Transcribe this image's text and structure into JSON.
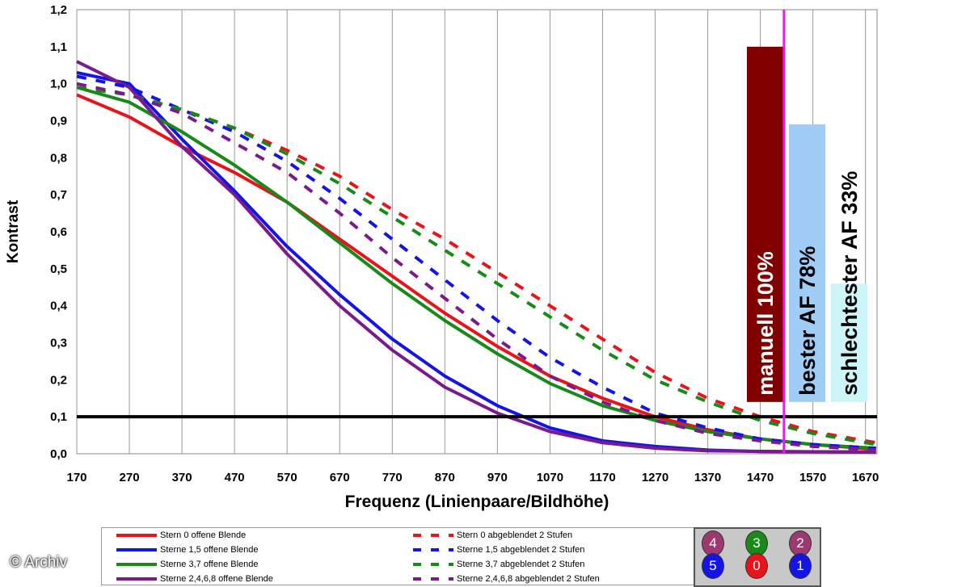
{
  "chart_data": {
    "type": "line",
    "title": "",
    "xlabel": "Frequenz (Linienpaare/Bildhöhe)",
    "ylabel": "Kontrast",
    "xlim": [
      170,
      1692
    ],
    "ylim": [
      0,
      1.2
    ],
    "xticks": [
      170,
      270,
      370,
      470,
      570,
      670,
      770,
      870,
      970,
      1070,
      1170,
      1270,
      1370,
      1470,
      1570,
      1670
    ],
    "yticks": [
      "0,0",
      "0,1",
      "0,2",
      "0,3",
      "0,4",
      "0,5",
      "0,6",
      "0,7",
      "0,8",
      "0,9",
      "1,0",
      "1,1",
      "1,2"
    ],
    "threshold": 0.1,
    "marker_x": 1515,
    "series": [
      {
        "name": "Stern 0 offene Blende",
        "color": "#e8141a",
        "dash": false,
        "x": [
          170,
          270,
          370,
          470,
          570,
          670,
          770,
          870,
          970,
          1070,
          1170,
          1270,
          1370,
          1470,
          1570,
          1690
        ],
        "y": [
          0.97,
          0.91,
          0.83,
          0.76,
          0.68,
          0.58,
          0.48,
          0.38,
          0.29,
          0.21,
          0.15,
          0.1,
          0.065,
          0.04,
          0.025,
          0.012
        ]
      },
      {
        "name": "Sterne 1,5 offene Blende",
        "color": "#1414e6",
        "dash": false,
        "x": [
          170,
          270,
          370,
          470,
          570,
          670,
          770,
          870,
          970,
          1070,
          1170,
          1270,
          1370,
          1470,
          1690
        ],
        "y": [
          1.03,
          1.0,
          0.85,
          0.71,
          0.56,
          0.43,
          0.31,
          0.21,
          0.13,
          0.07,
          0.035,
          0.02,
          0.01,
          0.006,
          0.005
        ]
      },
      {
        "name": "Sterne 3,7 offene Blende",
        "color": "#178a1a",
        "dash": false,
        "x": [
          170,
          270,
          370,
          470,
          570,
          670,
          770,
          870,
          970,
          1070,
          1170,
          1270,
          1370,
          1470,
          1570,
          1690
        ],
        "y": [
          0.99,
          0.95,
          0.87,
          0.78,
          0.68,
          0.57,
          0.46,
          0.36,
          0.27,
          0.19,
          0.13,
          0.09,
          0.06,
          0.04,
          0.025,
          0.015
        ]
      },
      {
        "name": "Sterne 2,4,6,8 offene Blende",
        "color": "#7a1a8c",
        "dash": false,
        "x": [
          170,
          270,
          370,
          470,
          570,
          670,
          770,
          870,
          970,
          1070,
          1170,
          1270,
          1370,
          1690
        ],
        "y": [
          1.06,
          0.99,
          0.83,
          0.7,
          0.54,
          0.4,
          0.28,
          0.18,
          0.11,
          0.06,
          0.03,
          0.015,
          0.008,
          0.004
        ]
      },
      {
        "name": "Stern 0 abgeblendet 2 Stufen",
        "color": "#e8141a",
        "dash": true,
        "x": [
          170,
          270,
          370,
          470,
          570,
          670,
          770,
          870,
          970,
          1070,
          1170,
          1270,
          1370,
          1470,
          1570,
          1690
        ],
        "y": [
          0.99,
          0.97,
          0.93,
          0.88,
          0.82,
          0.75,
          0.66,
          0.58,
          0.49,
          0.4,
          0.31,
          0.22,
          0.15,
          0.1,
          0.06,
          0.03
        ]
      },
      {
        "name": "Sterne 1,5 abgeblendet 2 Stufen",
        "color": "#1414e6",
        "dash": true,
        "x": [
          170,
          270,
          370,
          470,
          570,
          670,
          770,
          870,
          970,
          1070,
          1170,
          1270,
          1370,
          1470,
          1570,
          1690
        ],
        "y": [
          1.02,
          0.99,
          0.93,
          0.87,
          0.79,
          0.69,
          0.58,
          0.47,
          0.36,
          0.26,
          0.18,
          0.11,
          0.07,
          0.04,
          0.025,
          0.015
        ]
      },
      {
        "name": "Sterne 3,7 abgeblendet 2 Stufen",
        "color": "#178a1a",
        "dash": true,
        "x": [
          170,
          270,
          370,
          470,
          570,
          670,
          770,
          870,
          970,
          1070,
          1170,
          1270,
          1370,
          1470,
          1570,
          1690
        ],
        "y": [
          0.99,
          0.97,
          0.93,
          0.88,
          0.81,
          0.73,
          0.64,
          0.55,
          0.46,
          0.37,
          0.28,
          0.2,
          0.14,
          0.09,
          0.055,
          0.025
        ]
      },
      {
        "name": "Sterne 2,4,6,8 abgeblendet 2 Stufen",
        "color": "#7a1a8c",
        "dash": true,
        "x": [
          170,
          270,
          370,
          470,
          570,
          670,
          770,
          870,
          970,
          1070,
          1170,
          1270,
          1370,
          1470,
          1570,
          1690
        ],
        "y": [
          1.0,
          0.97,
          0.92,
          0.84,
          0.76,
          0.65,
          0.53,
          0.42,
          0.31,
          0.21,
          0.14,
          0.09,
          0.055,
          0.035,
          0.02,
          0.01
        ]
      }
    ],
    "bars": [
      {
        "label": "manuell 100%",
        "color": "#800000",
        "text_color": "#ffffff",
        "top": 1.1,
        "bottom": 0.14
      },
      {
        "label": "bester AF 78%",
        "color": "#9fcdf5",
        "text_color": "#000000",
        "top": 0.89,
        "bottom": 0.14
      },
      {
        "label": "schlechtester AF 33%",
        "color": "#ccf5f8",
        "text_color": "#000000",
        "top": 0.46,
        "bottom": 0.14
      }
    ]
  },
  "stars": [
    {
      "label": "4",
      "color": "#9c3a70"
    },
    {
      "label": "3",
      "color": "#178a1a"
    },
    {
      "label": "2",
      "color": "#9c3a70"
    },
    {
      "label": "5",
      "color": "#1414e6"
    },
    {
      "label": "0",
      "color": "#e8141a"
    },
    {
      "label": "1",
      "color": "#1414e6"
    }
  ],
  "watermark": "© Archiv"
}
